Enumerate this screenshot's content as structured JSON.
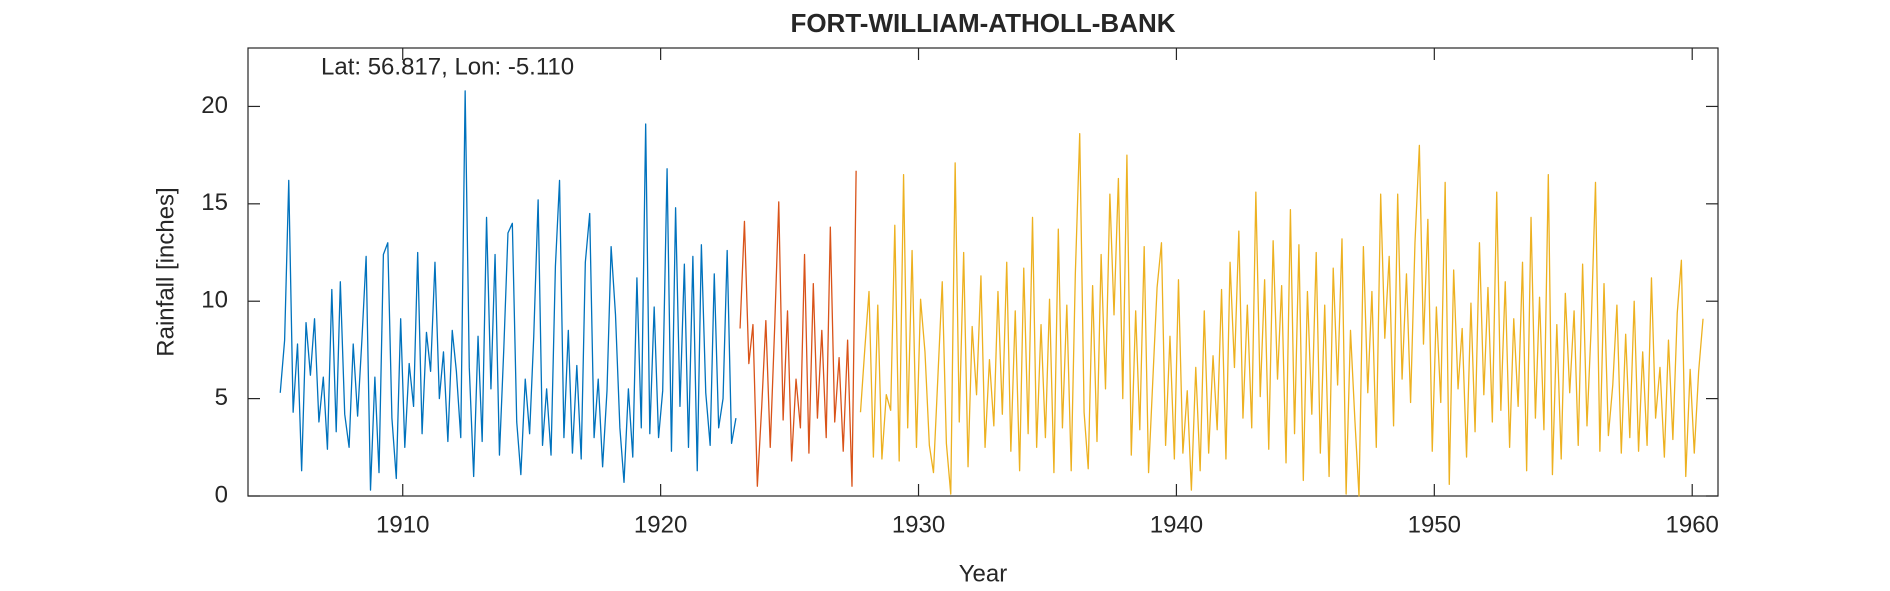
{
  "chart_data": {
    "type": "line",
    "title": "FORT-WILLIAM-ATHOLL-BANK",
    "annotation": "Lat: 56.817, Lon: -5.110",
    "x_label": "Year",
    "y_label": "Rainfall [inches]",
    "xlim": [
      1904,
      1961
    ],
    "xticks": [
      1910,
      1920,
      1930,
      1940,
      1950,
      1960
    ],
    "ylim": [
      0,
      23
    ],
    "yticks": [
      0,
      5,
      10,
      15,
      20
    ],
    "grid": false,
    "series": [
      {
        "color": "#0072bd",
        "x": [
          1905.25,
          1905.42,
          1905.58,
          1905.75,
          1905.92,
          1906.08,
          1906.25,
          1906.42,
          1906.58,
          1906.75,
          1906.92,
          1907.08,
          1907.25,
          1907.42,
          1907.58,
          1907.75,
          1907.92,
          1908.08,
          1908.25,
          1908.42,
          1908.58,
          1908.75,
          1908.92,
          1909.08,
          1909.25,
          1909.42,
          1909.58,
          1909.75,
          1909.92,
          1910.08,
          1910.25,
          1910.42,
          1910.58,
          1910.75,
          1910.92,
          1911.08,
          1911.25,
          1911.42,
          1911.58,
          1911.75,
          1911.92,
          1912.08,
          1912.25,
          1912.42,
          1912.58,
          1912.75,
          1912.92,
          1913.08,
          1913.25,
          1913.42,
          1913.58,
          1913.75,
          1913.92,
          1914.08,
          1914.25,
          1914.42,
          1914.58,
          1914.75,
          1914.92,
          1915.08,
          1915.25,
          1915.42,
          1915.58,
          1915.75,
          1915.92,
          1916.08,
          1916.25,
          1916.42,
          1916.58,
          1916.75,
          1916.92,
          1917.08,
          1917.25,
          1917.42,
          1917.58,
          1917.75,
          1917.92,
          1918.08,
          1918.25,
          1918.42,
          1918.58,
          1918.75,
          1918.92,
          1919.08,
          1919.25,
          1919.42,
          1919.58,
          1919.75,
          1919.92,
          1920.08,
          1920.25,
          1920.42,
          1920.58,
          1920.75,
          1920.92,
          1921.08,
          1921.25,
          1921.42,
          1921.58,
          1921.75,
          1921.92,
          1922.08,
          1922.25,
          1922.42,
          1922.58,
          1922.75,
          1922.92
        ],
        "values": [
          5.3,
          8.0,
          16.2,
          4.3,
          7.8,
          1.3,
          8.9,
          6.2,
          9.1,
          3.8,
          6.1,
          2.4,
          10.6,
          3.3,
          11.0,
          4.2,
          2.5,
          7.8,
          4.1,
          8.1,
          12.3,
          0.3,
          6.1,
          1.2,
          12.4,
          13.0,
          4.0,
          0.9,
          9.1,
          2.5,
          6.8,
          4.6,
          12.5,
          3.2,
          8.4,
          6.4,
          12.0,
          5.0,
          7.4,
          2.8,
          8.5,
          6.4,
          3.0,
          20.8,
          6.6,
          1.0,
          8.2,
          2.8,
          14.3,
          5.5,
          12.4,
          2.1,
          7.6,
          13.5,
          14.0,
          3.8,
          1.1,
          6.0,
          3.2,
          8.2,
          15.2,
          2.6,
          5.5,
          2.1,
          11.8,
          16.2,
          3.0,
          8.5,
          2.2,
          6.7,
          1.9,
          12.0,
          14.5,
          3.0,
          6.0,
          1.5,
          5.4,
          12.8,
          9.3,
          3.5,
          0.7,
          5.5,
          2.0,
          11.2,
          3.5,
          19.1,
          3.2,
          9.7,
          3.0,
          5.4,
          16.8,
          2.3,
          14.8,
          4.6,
          11.9,
          2.5,
          12.3,
          1.3,
          12.9,
          5.3,
          2.6,
          11.4,
          3.5,
          5.0,
          12.6,
          2.7,
          4.0
        ]
      },
      {
        "color": "#d95319",
        "x": [
          1923.08,
          1923.25,
          1923.42,
          1923.58,
          1923.75,
          1923.92,
          1924.08,
          1924.25,
          1924.42,
          1924.58,
          1924.75,
          1924.92,
          1925.08,
          1925.25,
          1925.42,
          1925.58,
          1925.75,
          1925.92,
          1926.08,
          1926.25,
          1926.42,
          1926.58,
          1926.75,
          1926.92,
          1927.08,
          1927.25,
          1927.42,
          1927.58
        ],
        "values": [
          8.6,
          14.1,
          6.8,
          8.8,
          0.5,
          4.6,
          9.0,
          2.5,
          8.6,
          15.1,
          3.9,
          9.5,
          1.8,
          6.0,
          3.5,
          12.4,
          2.2,
          10.9,
          4.0,
          8.5,
          3.0,
          13.8,
          3.8,
          7.1,
          2.3,
          8.0,
          0.5,
          16.7
        ]
      },
      {
        "color": "#edb120",
        "x": [
          1927.75,
          1927.92,
          1928.08,
          1928.25,
          1928.42,
          1928.58,
          1928.75,
          1928.92,
          1929.08,
          1929.25,
          1929.42,
          1929.58,
          1929.75,
          1929.92,
          1930.08,
          1930.25,
          1930.42,
          1930.58,
          1930.75,
          1930.92,
          1931.08,
          1931.25,
          1931.42,
          1931.58,
          1931.75,
          1931.92,
          1932.08,
          1932.25,
          1932.42,
          1932.58,
          1932.75,
          1932.92,
          1933.08,
          1933.25,
          1933.42,
          1933.58,
          1933.75,
          1933.92,
          1934.08,
          1934.25,
          1934.42,
          1934.58,
          1934.75,
          1934.92,
          1935.08,
          1935.25,
          1935.42,
          1935.58,
          1935.75,
          1935.92,
          1936.08,
          1936.25,
          1936.42,
          1936.58,
          1936.75,
          1936.92,
          1937.08,
          1937.25,
          1937.42,
          1937.58,
          1937.75,
          1937.92,
          1938.08,
          1938.25,
          1938.42,
          1938.58,
          1938.75,
          1938.92,
          1939.08,
          1939.25,
          1939.42,
          1939.58,
          1939.75,
          1939.92,
          1940.08,
          1940.25,
          1940.42,
          1940.58,
          1940.75,
          1940.92,
          1941.08,
          1941.25,
          1941.42,
          1941.58,
          1941.75,
          1941.92,
          1942.08,
          1942.25,
          1942.42,
          1942.58,
          1942.75,
          1942.92,
          1943.08,
          1943.25,
          1943.42,
          1943.58,
          1943.75,
          1943.92,
          1944.08,
          1944.25,
          1944.42,
          1944.58,
          1944.75,
          1944.92,
          1945.08,
          1945.25,
          1945.42,
          1945.58,
          1945.75,
          1945.92,
          1946.08,
          1946.25,
          1946.42,
          1946.58,
          1946.75,
          1946.92,
          1947.08,
          1947.25,
          1947.42,
          1947.58,
          1947.75,
          1947.92,
          1948.08,
          1948.25,
          1948.42,
          1948.58,
          1948.75,
          1948.92,
          1949.08,
          1949.25,
          1949.42,
          1949.58,
          1949.75,
          1949.92,
          1950.08,
          1950.25,
          1950.42,
          1950.58,
          1950.75,
          1950.92,
          1951.08,
          1951.25,
          1951.42,
          1951.58,
          1951.75,
          1951.92,
          1952.08,
          1952.25,
          1952.42,
          1952.58,
          1952.75,
          1952.92,
          1953.08,
          1953.25,
          1953.42,
          1953.58,
          1953.75,
          1953.92,
          1954.08,
          1954.25,
          1954.42,
          1954.58,
          1954.75,
          1954.92,
          1955.08,
          1955.25,
          1955.42,
          1955.58,
          1955.75,
          1955.92,
          1956.08,
          1956.25,
          1956.42,
          1956.58,
          1956.75,
          1956.92,
          1957.08,
          1957.25,
          1957.42,
          1957.58,
          1957.75,
          1957.92,
          1958.08,
          1958.25,
          1958.42,
          1958.58,
          1958.75,
          1958.92,
          1959.08,
          1959.25,
          1959.42,
          1959.58,
          1959.75,
          1959.92,
          1960.08,
          1960.25,
          1960.42
        ],
        "values": [
          4.3,
          7.6,
          10.5,
          2.0,
          9.8,
          1.9,
          5.2,
          4.4,
          13.9,
          1.8,
          16.5,
          3.5,
          12.6,
          2.5,
          10.1,
          7.4,
          2.6,
          1.2,
          6.1,
          11.0,
          2.7,
          0.1,
          17.1,
          3.8,
          12.5,
          1.5,
          8.7,
          5.2,
          11.3,
          2.5,
          7.0,
          3.6,
          10.5,
          4.2,
          12.0,
          2.3,
          9.5,
          1.3,
          11.7,
          3.2,
          14.3,
          2.5,
          8.8,
          3.0,
          10.1,
          1.2,
          13.7,
          3.5,
          9.8,
          1.3,
          11.4,
          18.6,
          4.3,
          1.4,
          10.8,
          2.8,
          12.4,
          5.5,
          15.5,
          9.3,
          16.3,
          5.0,
          17.5,
          2.1,
          9.5,
          3.4,
          12.8,
          1.2,
          5.8,
          10.7,
          13.0,
          2.6,
          8.2,
          1.9,
          11.1,
          2.2,
          5.4,
          0.3,
          6.6,
          1.3,
          9.5,
          2.2,
          7.2,
          3.4,
          10.6,
          1.9,
          12.0,
          6.6,
          13.6,
          4.0,
          9.8,
          3.5,
          15.6,
          5.1,
          11.1,
          2.4,
          13.1,
          6.0,
          10.8,
          1.7,
          14.7,
          3.2,
          12.9,
          0.8,
          10.5,
          4.2,
          12.5,
          2.2,
          9.8,
          1.0,
          11.7,
          5.7,
          13.2,
          0.1,
          8.5,
          3.9,
          0.0,
          12.8,
          5.3,
          10.5,
          2.5,
          15.5,
          8.1,
          12.3,
          3.6,
          15.5,
          6.0,
          11.4,
          4.8,
          13.0,
          18.0,
          7.8,
          14.2,
          2.3,
          9.7,
          4.8,
          16.1,
          0.6,
          11.6,
          5.5,
          8.6,
          2.0,
          9.9,
          3.3,
          13.0,
          5.2,
          10.7,
          3.8,
          15.6,
          4.4,
          11.0,
          2.5,
          9.1,
          4.6,
          12.0,
          1.3,
          14.3,
          4.0,
          10.2,
          3.4,
          16.5,
          1.1,
          8.8,
          1.9,
          10.4,
          5.3,
          9.5,
          2.6,
          11.9,
          3.6,
          8.6,
          16.1,
          2.3,
          10.9,
          3.1,
          5.7,
          9.8,
          2.2,
          8.3,
          3.0,
          10.0,
          2.3,
          7.4,
          2.6,
          11.2,
          4.0,
          6.6,
          2.0,
          8.0,
          2.9,
          9.4,
          12.1,
          1.0,
          6.5,
          2.2,
          6.4,
          9.1
        ]
      }
    ]
  }
}
